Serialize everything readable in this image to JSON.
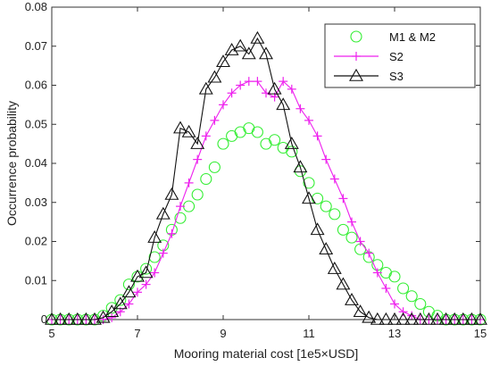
{
  "chart_data": {
    "type": "scatter",
    "xlabel": "Mooring material cost [1e5×USD]",
    "ylabel": "Occurrence probability",
    "xlim": [
      5,
      15
    ],
    "ylim": [
      0,
      0.08
    ],
    "xticks": [
      "5",
      "7",
      "9",
      "11",
      "13",
      "15"
    ],
    "yticks": [
      "0",
      "0.01",
      "0.02",
      "0.03",
      "0.04",
      "0.05",
      "0.06",
      "0.07",
      "0.08"
    ],
    "grid": false,
    "legend_position": "top-right",
    "series": [
      {
        "name": "M1 & M2",
        "color": "#33ee33",
        "marker": "circle",
        "line": false,
        "x": [
          5.0,
          5.2,
          5.4,
          5.6,
          5.8,
          6.0,
          6.2,
          6.4,
          6.6,
          6.8,
          7.0,
          7.2,
          7.4,
          7.6,
          7.8,
          8.0,
          8.2,
          8.4,
          8.6,
          8.8,
          9.0,
          9.2,
          9.4,
          9.6,
          9.8,
          10.0,
          10.2,
          10.4,
          10.6,
          10.8,
          11.0,
          11.2,
          11.4,
          11.6,
          11.8,
          12.0,
          12.2,
          12.4,
          12.6,
          12.8,
          13.0,
          13.2,
          13.4,
          13.6,
          13.8,
          14.0,
          14.2,
          14.4,
          14.6,
          14.8,
          15.0
        ],
        "y": [
          0,
          0,
          0,
          0,
          0,
          0,
          0.001,
          0.003,
          0.005,
          0.009,
          0.011,
          0.013,
          0.016,
          0.019,
          0.023,
          0.026,
          0.029,
          0.032,
          0.036,
          0.039,
          0.045,
          0.047,
          0.048,
          0.049,
          0.048,
          0.045,
          0.046,
          0.044,
          0.043,
          0.038,
          0.035,
          0.031,
          0.029,
          0.027,
          0.023,
          0.021,
          0.018,
          0.016,
          0.014,
          0.012,
          0.011,
          0.008,
          0.006,
          0.004,
          0.002,
          0.001,
          0,
          0,
          0,
          0,
          0
        ]
      },
      {
        "name": "S2",
        "color": "#ee22ee",
        "marker": "plus",
        "line": true,
        "x": [
          5.0,
          5.2,
          5.4,
          5.6,
          5.8,
          6.0,
          6.2,
          6.4,
          6.6,
          6.8,
          7.0,
          7.2,
          7.4,
          7.6,
          7.8,
          8.0,
          8.2,
          8.4,
          8.6,
          8.8,
          9.0,
          9.2,
          9.4,
          9.6,
          9.8,
          10.0,
          10.2,
          10.4,
          10.6,
          10.8,
          11.0,
          11.2,
          11.4,
          11.6,
          11.8,
          12.0,
          12.2,
          12.4,
          12.6,
          12.8,
          13.0,
          13.2,
          13.4,
          13.6,
          13.8,
          14.0,
          14.2,
          14.4,
          14.6,
          14.8,
          15.0
        ],
        "y": [
          0,
          0,
          0,
          0,
          0,
          0,
          0,
          0.0005,
          0.002,
          0.004,
          0.007,
          0.009,
          0.012,
          0.017,
          0.022,
          0.029,
          0.035,
          0.041,
          0.047,
          0.051,
          0.055,
          0.058,
          0.06,
          0.061,
          0.061,
          0.058,
          0.057,
          0.061,
          0.059,
          0.054,
          0.051,
          0.047,
          0.041,
          0.036,
          0.031,
          0.025,
          0.02,
          0.017,
          0.012,
          0.008,
          0.004,
          0.002,
          0.001,
          0,
          0,
          0,
          0,
          0,
          0,
          0,
          0
        ]
      },
      {
        "name": "S3",
        "color": "#111111",
        "marker": "triangle",
        "line": true,
        "x": [
          5.0,
          5.2,
          5.4,
          5.6,
          5.8,
          6.0,
          6.2,
          6.4,
          6.6,
          6.8,
          7.0,
          7.2,
          7.4,
          7.6,
          7.8,
          8.0,
          8.2,
          8.4,
          8.6,
          8.8,
          9.0,
          9.2,
          9.4,
          9.6,
          9.8,
          10.0,
          10.2,
          10.4,
          10.6,
          10.8,
          11.0,
          11.2,
          11.4,
          11.6,
          11.8,
          12.0,
          12.2,
          12.4,
          12.6,
          12.8,
          13.0,
          13.2,
          13.4,
          13.6,
          13.8,
          14.0,
          14.2,
          14.4,
          14.6,
          14.8,
          15.0
        ],
        "y": [
          0,
          0,
          0,
          0,
          0,
          0,
          0.0005,
          0.002,
          0.004,
          0.007,
          0.011,
          0.012,
          0.021,
          0.027,
          0.032,
          0.049,
          0.048,
          0.045,
          0.059,
          0.062,
          0.066,
          0.069,
          0.07,
          0.068,
          0.072,
          0.068,
          0.059,
          0.055,
          0.045,
          0.039,
          0.031,
          0.023,
          0.018,
          0.013,
          0.009,
          0.005,
          0.002,
          0.0005,
          0,
          0,
          0,
          0,
          0,
          0,
          0,
          0,
          0,
          0,
          0,
          0,
          0
        ]
      }
    ]
  }
}
